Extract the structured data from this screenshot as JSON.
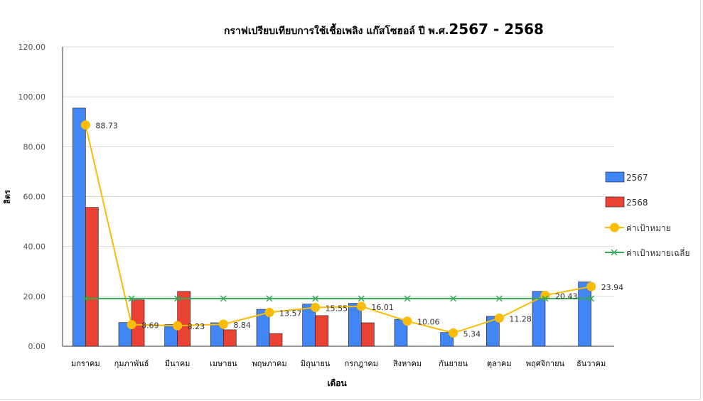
{
  "chart_data": {
    "type": "bar",
    "title_main": "กราฟเปรียบเทียบการใช้เชื้อเพลิง      แก๊สโซฮอล์  ปี พ.ศ.",
    "title_years": "2567 - 2568",
    "xlabel": "เดือน",
    "ylabel": "ลิตร",
    "ylim": [
      0,
      120
    ],
    "y_ticks": [
      "0.00",
      "20.00",
      "40.00",
      "60.00",
      "80.00",
      "100.00",
      "120.00"
    ],
    "grid": true,
    "legend_position": "right",
    "categories": [
      "มกราคม",
      "กุมภาพันธ์",
      "มีนาคม",
      "เมษายน",
      "พฤษภาคม",
      "มิถุนายน",
      "กรกฎาคม",
      "สิงหาคม",
      "กันยายน",
      "ตุลาคม",
      "พฤศจิกายน",
      "ธันวาคม"
    ],
    "series": [
      {
        "name": "2567",
        "kind": "bar",
        "color": "#4285f4",
        "values": [
          95.5,
          9.5,
          8.7,
          9.4,
          14.8,
          16.9,
          17.2,
          10.8,
          5.5,
          12.0,
          22.0,
          25.8
        ]
      },
      {
        "name": "2568",
        "kind": "bar",
        "color": "#ea4335",
        "values": [
          55.7,
          18.6,
          22.0,
          6.6,
          5.1,
          12.3,
          9.4,
          null,
          null,
          null,
          null,
          null
        ]
      },
      {
        "name": "ค่าเป้าหมาย",
        "kind": "line",
        "color": "#fbbc04",
        "values": [
          88.73,
          8.69,
          8.23,
          8.84,
          13.57,
          15.55,
          16.01,
          10.06,
          5.34,
          11.28,
          20.43,
          23.94
        ],
        "labels": [
          "88.73",
          "8.69",
          "8.23",
          "8.84",
          "13.57",
          "15.55",
          "16.01",
          "10.06",
          "5.34",
          "11.28",
          "20.43",
          "23.94"
        ]
      },
      {
        "name": "ค่าเป้าหมายเฉลี่ย",
        "kind": "line",
        "color": "#34a853",
        "values": [
          19.14,
          19.14,
          19.14,
          19.14,
          19.14,
          19.14,
          19.14,
          19.14,
          19.14,
          19.14,
          19.14,
          19.14
        ]
      }
    ]
  }
}
